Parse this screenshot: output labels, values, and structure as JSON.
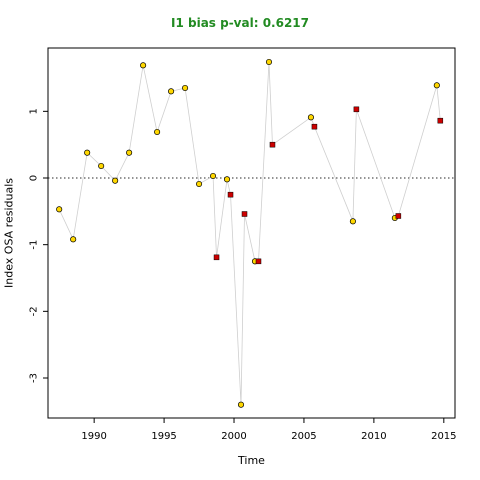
{
  "chart_data": {
    "type": "scatter",
    "title": "I1 bias p-val: 0.6217",
    "xlabel": "Time",
    "ylabel": "Index OSA residuals",
    "xlim": [
      1986.7,
      2015.8
    ],
    "ylim": [
      -3.6,
      1.95
    ],
    "x_ticks": [
      1990,
      1995,
      2000,
      2005,
      2010,
      2015
    ],
    "y_ticks": [
      -3,
      -2,
      -1,
      0,
      1
    ],
    "reference_line": 0,
    "title_color": "#228B22",
    "series": [
      {
        "marker": "circle",
        "fill": "#FFD700",
        "points": [
          [
            1987.5,
            -0.47
          ],
          [
            1988.5,
            -0.92
          ],
          [
            1989.5,
            0.38
          ],
          [
            1990.5,
            0.18
          ],
          [
            1991.5,
            -0.04
          ],
          [
            1992.5,
            0.38
          ],
          [
            1993.5,
            1.69
          ],
          [
            1994.5,
            0.69
          ],
          [
            1995.5,
            1.3
          ],
          [
            1996.5,
            1.35
          ],
          [
            1997.5,
            -0.09
          ],
          [
            1998.5,
            0.03
          ],
          [
            1999.5,
            -0.02
          ],
          [
            2000.5,
            -3.4
          ],
          [
            2001.5,
            -1.25
          ],
          [
            2002.5,
            1.74
          ],
          [
            2005.5,
            0.91
          ],
          [
            2008.5,
            -0.65
          ],
          [
            2011.5,
            -0.6
          ],
          [
            2014.5,
            1.39
          ]
        ]
      },
      {
        "marker": "square",
        "fill": "#CC0000",
        "points": [
          [
            1998.75,
            -1.19
          ],
          [
            1999.75,
            -0.25
          ],
          [
            2000.75,
            -0.54
          ],
          [
            2001.75,
            -1.25
          ],
          [
            2002.75,
            0.5
          ],
          [
            2005.75,
            0.77
          ],
          [
            2008.75,
            1.03
          ],
          [
            2011.75,
            -0.57
          ],
          [
            2014.75,
            0.86
          ]
        ]
      }
    ]
  }
}
